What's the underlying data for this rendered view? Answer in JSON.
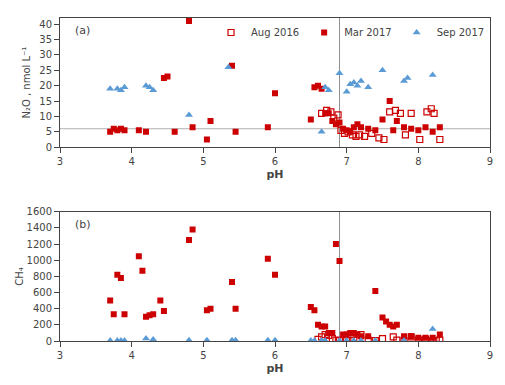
{
  "chart_data": [
    {
      "type": "scatter",
      "xlabel": "pH",
      "ylabel": "N₂O , nmol L⁻¹",
      "xlim": [
        3,
        9
      ],
      "xticks": [
        3,
        4,
        5,
        6,
        7,
        8,
        9
      ],
      "ylim": [
        0,
        42
      ],
      "yticks": [
        0,
        5,
        10,
        15,
        20,
        25,
        30,
        35,
        40
      ],
      "grid": false,
      "legend": "upper right",
      "annotations": [
        "(a)"
      ],
      "hlines": [
        {
          "y": 6.0,
          "color": "#b0b0b0"
        }
      ],
      "vlines": [
        {
          "x": 6.9,
          "color": "#909090"
        }
      ],
      "series": [
        {
          "name": "Aug 2016",
          "color": "#cc0000",
          "marker": "square-open",
          "x": [
            6.65,
            6.72,
            6.78,
            6.82,
            6.88,
            6.92,
            6.97,
            7.02,
            7.08,
            7.13,
            7.18,
            7.25,
            7.35,
            7.45,
            7.52,
            7.6,
            7.68,
            7.75,
            7.82,
            7.9,
            8.02,
            8.12,
            8.18,
            8.22,
            8.3
          ],
          "values": [
            11.0,
            12.0,
            11.5,
            9.5,
            10.5,
            5.5,
            4.5,
            5.0,
            4.0,
            3.5,
            4.0,
            3.5,
            4.5,
            3.0,
            2.5,
            11.5,
            12.0,
            11.0,
            4.0,
            11.0,
            2.5,
            11.5,
            12.5,
            11.0,
            2.5
          ]
        },
        {
          "name": "Mar 2017",
          "color": "#cc0000",
          "marker": "square",
          "x": [
            3.7,
            3.75,
            3.8,
            3.85,
            3.9,
            4.1,
            4.2,
            4.45,
            4.5,
            4.8,
            4.85,
            5.05,
            5.1,
            5.4,
            5.45,
            5.9,
            6.0,
            6.5,
            6.55,
            6.6,
            6.65,
            6.7,
            6.75,
            6.8,
            6.85,
            6.9,
            6.95,
            7.0,
            7.05,
            7.1,
            7.15,
            7.2,
            7.3,
            7.4,
            7.5,
            7.6,
            7.65,
            7.7,
            7.8,
            7.9,
            8.0,
            8.1,
            8.2,
            8.3,
            4.6
          ],
          "values": [
            5.0,
            6.0,
            5.5,
            6.0,
            5.5,
            5.5,
            5.0,
            22.5,
            23.0,
            41.0,
            6.5,
            2.5,
            8.5,
            26.5,
            5.0,
            6.5,
            17.5,
            9.0,
            19.5,
            20.0,
            19.0,
            11.0,
            11.0,
            8.5,
            7.5,
            8.0,
            6.0,
            5.5,
            5.0,
            6.5,
            7.5,
            6.5,
            6.0,
            5.5,
            9.0,
            15.0,
            5.5,
            8.5,
            6.5,
            6.0,
            5.5,
            6.5,
            5.0,
            6.5,
            5.0
          ]
        },
        {
          "name": "Sep 2017",
          "color": "#5b9bd5",
          "marker": "triangle-up",
          "x": [
            3.7,
            3.8,
            3.85,
            3.9,
            4.2,
            4.25,
            4.3,
            4.8,
            5.35,
            6.65,
            6.7,
            6.75,
            6.9,
            7.0,
            7.05,
            7.1,
            7.15,
            7.2,
            7.3,
            7.5,
            7.8,
            7.85,
            8.2
          ],
          "values": [
            19.0,
            19.0,
            18.5,
            19.5,
            20.0,
            19.5,
            18.5,
            10.5,
            26.0,
            5.0,
            19.5,
            18.5,
            24.0,
            18.0,
            20.5,
            21.0,
            20.0,
            21.5,
            19.5,
            25.0,
            21.5,
            22.5,
            23.5
          ]
        }
      ]
    },
    {
      "type": "scatter",
      "xlabel": "pH",
      "ylabel": "CH₄",
      "xlim": [
        3,
        9
      ],
      "xticks": [
        3,
        4,
        5,
        6,
        7,
        8,
        9
      ],
      "ylim": [
        0,
        1600
      ],
      "yticks": [
        0,
        200,
        400,
        600,
        800,
        1000,
        1200,
        1400,
        1600
      ],
      "grid": false,
      "annotations": [
        "(b)"
      ],
      "vlines": [
        {
          "x": 6.9,
          "color": "#909090"
        }
      ],
      "series": [
        {
          "name": "Aug 2016",
          "color": "#cc0000",
          "marker": "square-open",
          "x": [
            6.6,
            6.65,
            6.7,
            6.75,
            6.8,
            6.85,
            6.9,
            6.95,
            7.0,
            7.05,
            7.1,
            7.15,
            7.2,
            7.3,
            7.4,
            7.5,
            7.65,
            7.7,
            7.8,
            7.9,
            8.0,
            8.1,
            8.2,
            8.25,
            8.3
          ],
          "values": [
            20.0,
            50.0,
            80.0,
            70.0,
            30.0,
            10.0,
            5.0,
            10.0,
            5.0,
            80.0,
            30.0,
            10.0,
            80.0,
            10.0,
            5.0,
            30.0,
            50.0,
            10.0,
            5.0,
            50.0,
            10.0,
            20.0,
            5.0,
            5.0,
            10.0
          ]
        },
        {
          "name": "Mar 2017",
          "color": "#cc0000",
          "marker": "square",
          "x": [
            3.7,
            3.75,
            3.8,
            3.85,
            3.9,
            4.1,
            4.15,
            4.2,
            4.25,
            4.3,
            4.4,
            4.45,
            4.8,
            4.85,
            5.05,
            5.1,
            5.4,
            5.45,
            5.9,
            6.0,
            6.5,
            6.55,
            6.6,
            6.65,
            6.7,
            6.75,
            6.8,
            6.85,
            6.9,
            6.95,
            7.0,
            7.05,
            7.1,
            7.15,
            7.2,
            7.3,
            7.4,
            7.5,
            7.55,
            7.6,
            7.65,
            7.7,
            7.8,
            7.9,
            8.0,
            8.1,
            8.2,
            8.3
          ],
          "values": [
            500.0,
            330.0,
            820.0,
            780.0,
            330.0,
            1050.0,
            870.0,
            300.0,
            320.0,
            330.0,
            500.0,
            370.0,
            1250.0,
            1380.0,
            380.0,
            400.0,
            730.0,
            400.0,
            1020.0,
            820.0,
            420.0,
            380.0,
            200.0,
            180.0,
            180.0,
            100.0,
            100.0,
            1200.0,
            990.0,
            80.0,
            80.0,
            100.0,
            100.0,
            80.0,
            60.0,
            60.0,
            620.0,
            290.0,
            240.0,
            200.0,
            180.0,
            200.0,
            60.0,
            60.0,
            40.0,
            40.0,
            40.0,
            80.0
          ]
        },
        {
          "name": "Sep 2017",
          "color": "#5b9bd5",
          "marker": "triangle-up",
          "x": [
            3.7,
            3.8,
            3.85,
            3.9,
            4.2,
            4.3,
            4.8,
            5.05,
            5.4,
            5.45,
            5.9,
            6.0,
            6.5,
            6.55,
            6.65,
            6.7,
            6.9,
            7.0,
            7.1,
            7.2,
            7.4,
            7.8,
            8.2
          ],
          "values": [
            5.0,
            5.0,
            5.0,
            5.0,
            30.0,
            20.0,
            10.0,
            10.0,
            10.0,
            10.0,
            10.0,
            10.0,
            5.0,
            5.0,
            5.0,
            5.0,
            5.0,
            5.0,
            5.0,
            5.0,
            5.0,
            5.0,
            150.0
          ]
        }
      ]
    }
  ]
}
